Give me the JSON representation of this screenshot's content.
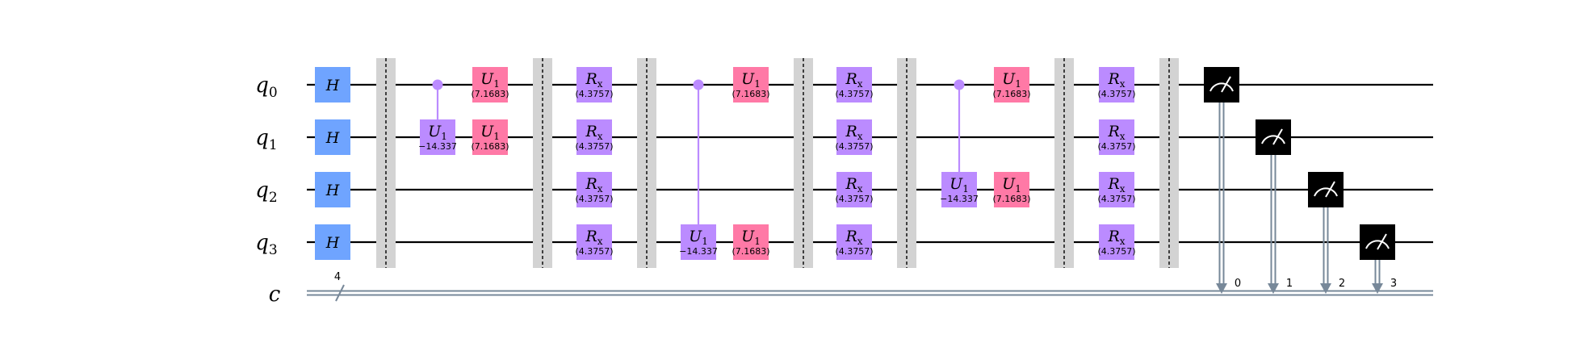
{
  "qubits": [
    {
      "name": "q",
      "index": "0"
    },
    {
      "name": "q",
      "index": "1"
    },
    {
      "name": "q",
      "index": "2"
    },
    {
      "name": "q",
      "index": "3"
    }
  ],
  "classical": {
    "name": "c",
    "size": "4"
  },
  "colors": {
    "h": "#6FA4FF",
    "u1": "#FF79A6",
    "rx": "#BB8BFF",
    "control": "#BB8BFF",
    "barrier": "#D3D3D3",
    "measure": "#000000",
    "classical_wire": "#778899"
  },
  "gates": {
    "h": {
      "label": "H"
    },
    "u1": {
      "label": "U",
      "sub": "1"
    },
    "rx": {
      "label": "R",
      "sub": "x"
    },
    "measure": {
      "label": "measure"
    }
  },
  "params": {
    "cu1": "−14.337",
    "u1": "(7.1683)",
    "rx": "(4.3757)"
  },
  "measure_bits": [
    "0",
    "1",
    "2",
    "3"
  ]
}
